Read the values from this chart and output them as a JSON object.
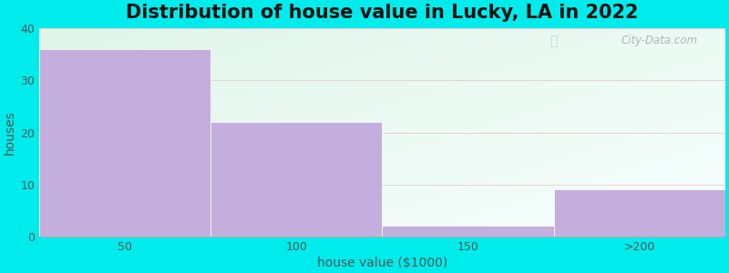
{
  "title": "Distribution of house value in Lucky, LA in 2022",
  "xlabel": "house value ($1000)",
  "ylabel": "houses",
  "categories": [
    "50",
    "100",
    "150",
    ">200"
  ],
  "values": [
    36,
    22,
    2,
    9
  ],
  "bar_color": "#c4aedd",
  "bar_edge_color": "#c4aedd",
  "ylim": [
    0,
    40
  ],
  "yticks": [
    0,
    10,
    20,
    30,
    40
  ],
  "background_outer": "#00ecec",
  "grid_color": "#e8b8b8",
  "title_fontsize": 15,
  "axis_label_fontsize": 10,
  "tick_fontsize": 9,
  "watermark_text": "City-Data.com",
  "watermark_color": "#aaaaaa",
  "bg_top_left": "#dff5e8",
  "bg_bottom_right": "#f8ffff"
}
